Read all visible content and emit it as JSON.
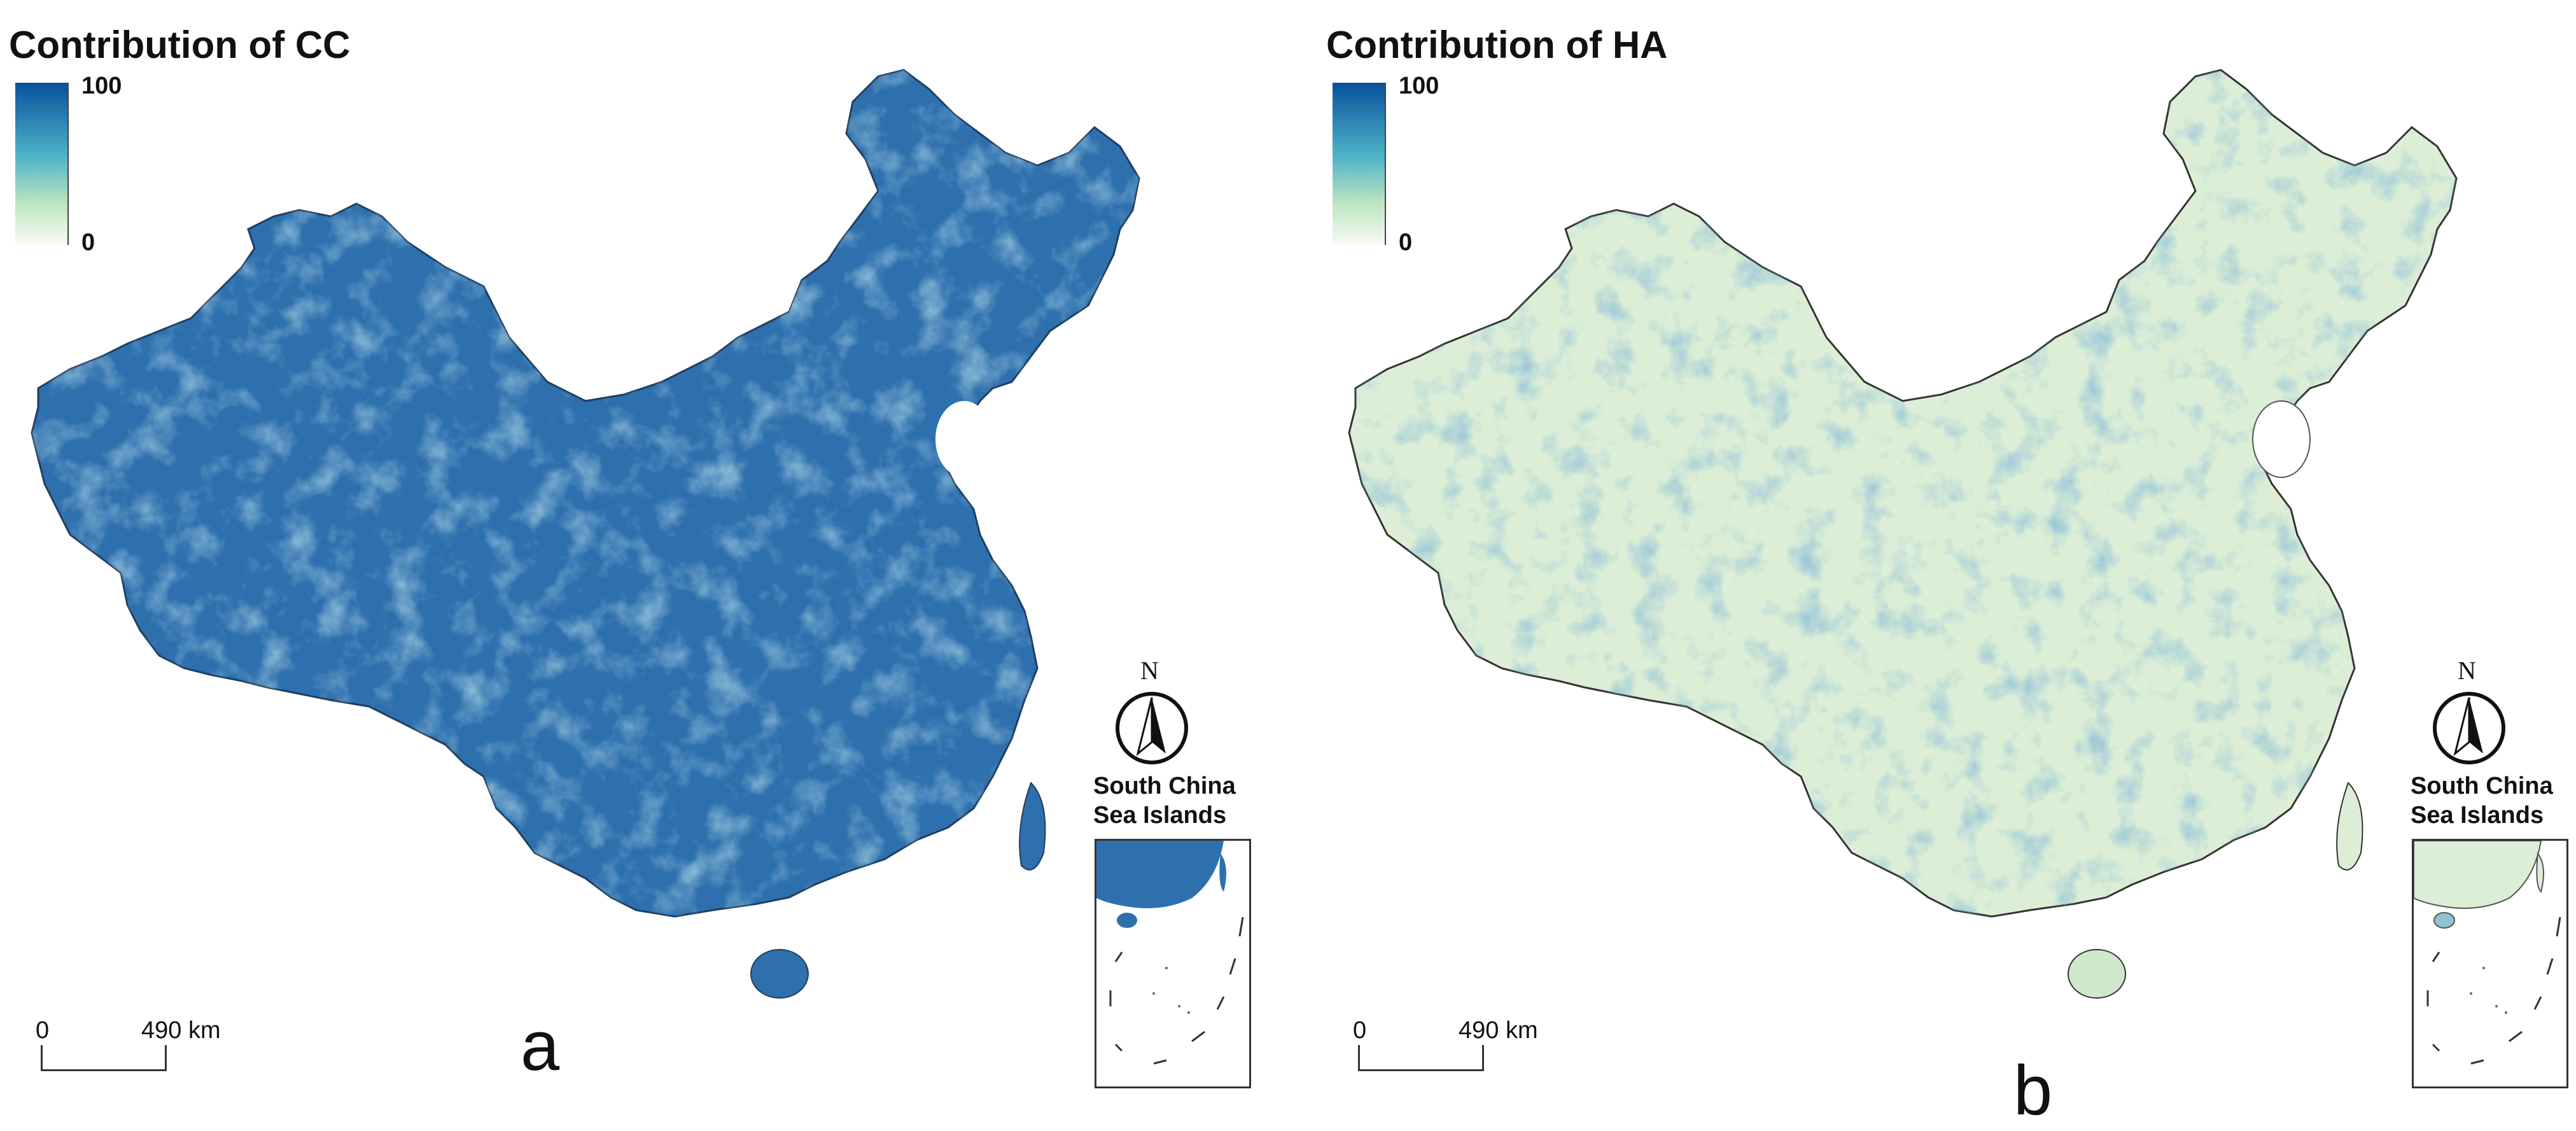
{
  "panels": [
    {
      "title": "Contribution of CC",
      "legend": {
        "max_label": "100",
        "min_label": "0"
      },
      "scale": {
        "zero_label": "0",
        "distance_label": "490 km"
      },
      "panel_letter": "a",
      "north_label": "N",
      "inset": {
        "title_line1": "South China",
        "title_line2": "Sea Islands"
      },
      "colors": {
        "land_fill": "#2e6fae",
        "land_texture": "#7fb7c9",
        "legend_high": "#08519c",
        "legend_mid": "#4eb3c7",
        "legend_low": "#f2faee"
      }
    },
    {
      "title": "Contribution of HA",
      "legend": {
        "max_label": "100",
        "min_label": "0"
      },
      "scale": {
        "zero_label": "0",
        "distance_label": "490 km"
      },
      "panel_letter": "b",
      "north_label": "N",
      "inset": {
        "title_line1": "South China",
        "title_line2": "Sea Islands"
      },
      "colors": {
        "land_fill": "#dcefd6",
        "land_texture": "#6fa9c4",
        "legend_high": "#08519c",
        "legend_mid": "#4eb3c7",
        "legend_low": "#f2faee"
      }
    }
  ]
}
